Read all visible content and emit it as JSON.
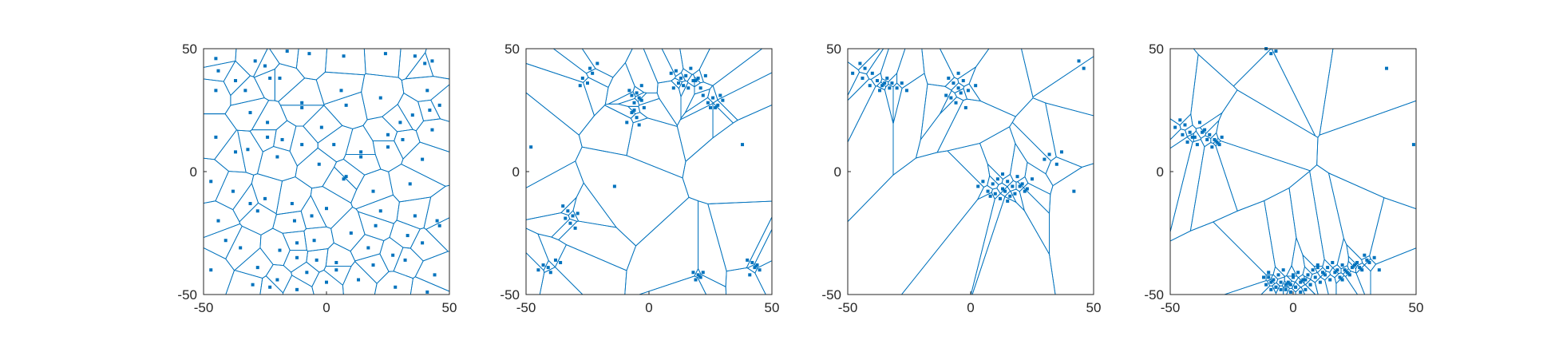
{
  "chart_data": [
    {
      "type": "scatter",
      "overlay": "voronoi",
      "xlim": [
        -50,
        50
      ],
      "ylim": [
        -50,
        50
      ],
      "xticks": [
        "-50",
        "0",
        "50"
      ],
      "yticks": [
        "-50",
        "0",
        "50"
      ],
      "grid": false,
      "box": true,
      "colors": {
        "points": "#0072bd",
        "edges": "#0072bd"
      },
      "x": [
        -45,
        -44,
        -29,
        -25,
        -23,
        -16,
        -7,
        7,
        24,
        36,
        40,
        43,
        -45,
        -37,
        -33,
        -19,
        -10,
        6,
        22,
        41,
        46,
        -31,
        -24,
        -10,
        -2,
        8,
        30,
        35,
        43,
        -45,
        -37,
        -24,
        -20,
        -10,
        -3,
        3,
        8,
        14,
        25,
        31,
        39,
        -47,
        -38,
        -31,
        -14,
        0,
        19,
        34,
        -44,
        -28,
        -13,
        -6,
        10,
        20,
        33,
        45,
        -35,
        -19,
        -12,
        -5,
        4,
        17,
        27,
        39,
        -47,
        -28,
        -20,
        -8,
        4,
        19,
        32,
        44,
        -30,
        -23,
        -12,
        0,
        13,
        28,
        41,
        -41,
        -25,
        -12,
        -4,
        7,
        22,
        36,
        46,
        -32,
        -18,
        14,
        25,
        42
      ],
      "y": [
        46,
        41,
        45,
        43,
        38,
        49,
        48,
        47,
        48,
        47,
        44,
        45,
        33,
        37,
        33,
        38,
        28,
        33,
        30,
        33,
        27,
        24,
        20,
        26,
        18,
        27,
        20,
        23,
        17,
        14,
        8,
        14,
        6,
        11,
        3,
        11,
        -2,
        8,
        10,
        13,
        5,
        -4,
        -8,
        -13,
        -13,
        -15,
        -8,
        -5,
        -20,
        -16,
        -20,
        -18,
        -25,
        -22,
        -26,
        -20,
        -31,
        -32,
        -35,
        -28,
        -37,
        -31,
        -34,
        -29,
        -40,
        -39,
        -44,
        -41,
        -40,
        -38,
        -36,
        -42,
        -46,
        -47,
        -48,
        -45,
        -44,
        -47,
        -49,
        -28,
        -11,
        -29,
        -36,
        -3,
        -16,
        -18,
        -22,
        9,
        13,
        6,
        15,
        25
      ]
    },
    {
      "type": "scatter",
      "overlay": "voronoi",
      "xlim": [
        -50,
        50
      ],
      "ylim": [
        -50,
        50
      ],
      "xticks": [
        "-50",
        "0",
        "50"
      ],
      "yticks": [
        "-50",
        "0",
        "50"
      ],
      "grid": false,
      "box": true,
      "colors": {
        "points": "#0072bd",
        "edges": "#0072bd"
      },
      "x": [
        -24,
        -21,
        -23,
        -25,
        -27,
        -28,
        -5,
        -4,
        -6,
        -8,
        -3,
        -2,
        -7,
        -5,
        -9,
        -4,
        -6,
        -7,
        -3,
        9,
        11,
        13,
        15,
        17,
        19,
        12,
        14,
        16,
        18,
        20,
        10,
        22,
        24,
        26,
        28,
        30,
        25,
        27,
        29,
        23,
        21,
        -35,
        -33,
        -31,
        -29,
        -32,
        -30,
        -34,
        -45,
        -43,
        -41,
        -38,
        -36,
        -40,
        18,
        20,
        21,
        22,
        19,
        42,
        44,
        45,
        43,
        40,
        41,
        -48,
        -14,
        38
      ],
      "y": [
        42,
        44,
        40,
        36,
        38,
        35,
        32,
        30,
        28,
        33,
        29,
        26,
        24,
        22,
        20,
        19,
        25,
        31,
        35,
        40,
        41,
        38,
        39,
        42,
        37,
        36,
        35,
        34,
        37,
        38,
        34,
        31,
        28,
        30,
        27,
        29,
        26,
        26,
        31,
        39,
        34,
        -14,
        -16,
        -18,
        -17,
        -21,
        -23,
        -19,
        -40,
        -38,
        -39,
        -36,
        -37,
        -41,
        -41,
        -42,
        -43,
        -41,
        -44,
        -37,
        -38,
        -40,
        -39,
        -36,
        -42,
        10,
        -6,
        11
      ]
    },
    {
      "type": "scatter",
      "overlay": "voronoi",
      "xlim": [
        -50,
        50
      ],
      "ylim": [
        -50,
        50
      ],
      "xticks": [
        "-50",
        "0",
        "50"
      ],
      "yticks": [
        "-50",
        "0",
        "50"
      ],
      "grid": false,
      "box": true,
      "colors": {
        "points": "#0072bd",
        "edges": "#0072bd"
      },
      "x": [
        -48,
        -45,
        -43,
        -40,
        -38,
        -36,
        -34,
        -32,
        -30,
        -28,
        -26,
        -44,
        -41,
        -37,
        -35,
        -33,
        -9,
        -7,
        -5,
        -3,
        -1,
        2,
        -8,
        -6,
        -4,
        -2,
        -10,
        -5,
        3,
        5,
        7,
        9,
        11,
        13,
        15,
        17,
        19,
        21,
        23,
        25,
        8,
        10,
        12,
        14,
        16,
        18,
        20,
        22,
        13,
        15,
        30,
        32,
        35,
        37,
        42,
        44,
        46
      ],
      "y": [
        40,
        44,
        42,
        40,
        37,
        35,
        38,
        36,
        34,
        36,
        33,
        38,
        35,
        33,
        36,
        34,
        38,
        36,
        34,
        37,
        33,
        35,
        30,
        28,
        32,
        26,
        31,
        40,
        -6,
        -4,
        -8,
        -5,
        -3,
        -7,
        -4,
        -6,
        -2,
        -5,
        -7,
        -3,
        -10,
        -9,
        -11,
        -8,
        -10,
        -9,
        -6,
        -8,
        -1,
        -12,
        5,
        7,
        3,
        8,
        -8,
        45,
        42
      ]
    },
    {
      "type": "scatter",
      "overlay": "voronoi",
      "xlim": [
        -50,
        50
      ],
      "ylim": [
        -50,
        50
      ],
      "xticks": [
        "-50",
        "0",
        "50"
      ],
      "yticks": [
        "-50",
        "0",
        "50"
      ],
      "grid": false,
      "box": true,
      "colors": {
        "points": "#0072bd",
        "edges": "#0072bd"
      },
      "x": [
        -48,
        -46,
        -44,
        -42,
        -40,
        -38,
        -36,
        -34,
        -32,
        -30,
        -45,
        -43,
        -41,
        -39,
        -37,
        -35,
        -33,
        -31,
        -29,
        -12,
        -10,
        -8,
        -6,
        -4,
        -2,
        0,
        2,
        4,
        6,
        8,
        10,
        12,
        14,
        16,
        18,
        20,
        22,
        24,
        26,
        28,
        30,
        -11,
        -9,
        -7,
        -5,
        -3,
        -1,
        1,
        3,
        5,
        7,
        9,
        11,
        13,
        15,
        17,
        19,
        21,
        23,
        25,
        27,
        29,
        31,
        33,
        35,
        -9,
        -7,
        -5,
        -3,
        -1,
        1,
        3,
        5,
        7,
        -10,
        0,
        10,
        20,
        -7,
        -9,
        -11,
        38,
        49
      ],
      "y": [
        18,
        21,
        19,
        16,
        14,
        20,
        17,
        15,
        13,
        11,
        15,
        12,
        14,
        11,
        16,
        13,
        10,
        12,
        14,
        -43,
        -41,
        -44,
        -42,
        -40,
        -45,
        -43,
        -41,
        -44,
        -42,
        -40,
        -38,
        -41,
        -39,
        -37,
        -40,
        -38,
        -41,
        -39,
        -37,
        -40,
        -36,
        -46,
        -48,
        -47,
        -45,
        -48,
        -46,
        -47,
        -49,
        -44,
        -46,
        -43,
        -45,
        -42,
        -44,
        -41,
        -43,
        -40,
        -42,
        -38,
        -39,
        -34,
        -37,
        -35,
        -40,
        -45,
        -47,
        -48,
        -46,
        -49,
        -47,
        -45,
        -48,
        -46,
        -43,
        -42,
        -39,
        -44,
        49,
        48,
        50,
        42,
        11
      ]
    }
  ]
}
